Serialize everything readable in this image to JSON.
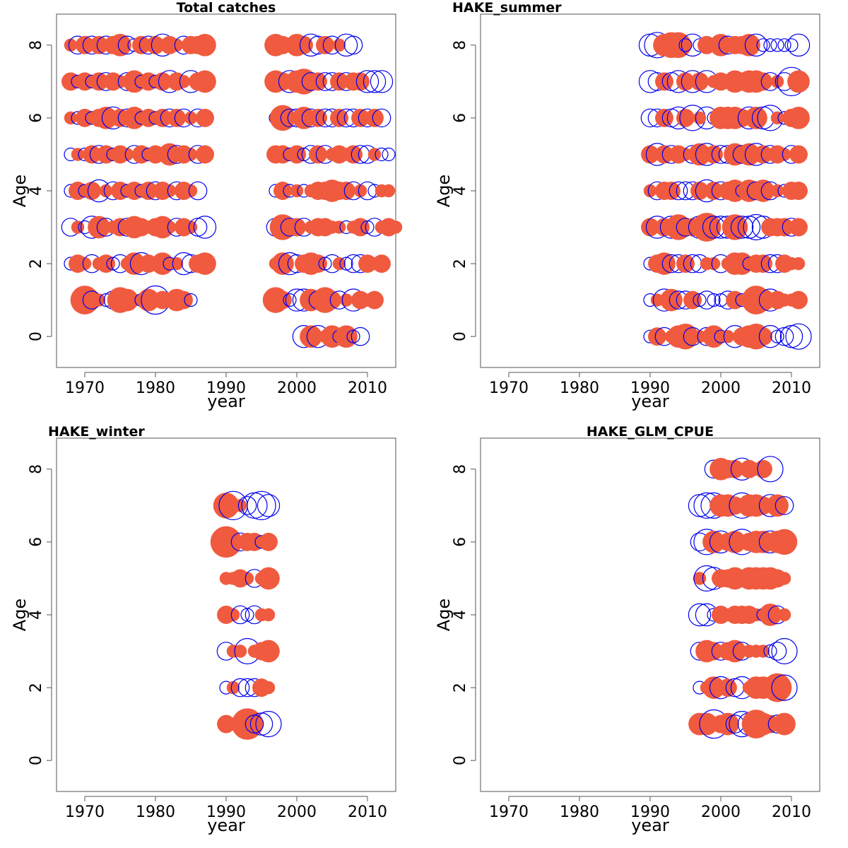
{
  "colors": {
    "positive": "#f05a3f",
    "negative": "#0000ee",
    "axis": "#555555"
  },
  "chart_data": [
    {
      "type": "scatter",
      "title": "Total catches",
      "xlabel": "year",
      "ylabel": "Age",
      "xticks": [
        1970,
        1980,
        1990,
        2000,
        2010
      ],
      "yticks": [
        0,
        2,
        4,
        6,
        8
      ],
      "xlim": [
        1966,
        2014
      ],
      "ylim": [
        -0.85,
        8.85
      ],
      "rows": [
        {
          "age": 1,
          "x0": 1969,
          "s": [
            -1,
            5,
            -2,
            1,
            -1,
            -2,
            4,
            3,
            1,
            -1,
            3,
            -5,
            2,
            1,
            3,
            2,
            -1
          ]
        },
        {
          "age": 2,
          "x0": 1968,
          "s": [
            -1,
            2,
            1,
            -2,
            1,
            2,
            -1,
            -2,
            1,
            3,
            -3,
            2,
            1,
            3,
            -1,
            1,
            -3,
            -2,
            2,
            3
          ]
        },
        {
          "age": 3,
          "x0": 1968,
          "s": [
            -2,
            1,
            -1,
            -3,
            3,
            -2,
            1,
            2,
            -2,
            3,
            2,
            1,
            2,
            3,
            1,
            -2,
            2,
            1,
            -2,
            -3
          ]
        },
        {
          "age": 4,
          "x0": 1968,
          "s": [
            -1,
            2,
            -1,
            2,
            -3,
            1,
            -2,
            2,
            -1,
            2,
            -1,
            2,
            -2,
            2,
            1,
            -2,
            2,
            1,
            -2
          ]
        },
        {
          "age": 5,
          "x0": 1968,
          "s": [
            -1,
            1,
            -1,
            2,
            -2,
            2,
            -1,
            2,
            1,
            -2,
            2,
            -1,
            2,
            1,
            3,
            -2,
            2,
            1,
            -2,
            2
          ]
        },
        {
          "age": 6,
          "x0": 1968,
          "s": [
            1,
            -1,
            2,
            -1,
            2,
            3,
            -3,
            2,
            -2,
            3,
            -1,
            2,
            -1,
            2,
            -2,
            2,
            -2,
            1,
            -2,
            2
          ]
        },
        {
          "age": 7,
          "x0": 1968,
          "s": [
            2,
            -1,
            2,
            -1,
            2,
            -2,
            2,
            1,
            -2,
            3,
            -1,
            2,
            -1,
            2,
            -3,
            2,
            1,
            -3,
            2,
            3
          ]
        },
        {
          "age": 8,
          "x0": 1968,
          "s": [
            1,
            -2,
            2,
            -2,
            2,
            -2,
            2,
            3,
            -2,
            -1,
            2,
            -2,
            2,
            -3,
            2,
            1,
            -2,
            2,
            2,
            3
          ]
        },
        {
          "age": 0,
          "x0": 2001,
          "s": [
            -3,
            3,
            -3,
            1,
            3,
            -1,
            3,
            -1,
            -2
          ]
        },
        {
          "age": 1,
          "x0": 1997,
          "s": [
            4,
            2,
            -1,
            -3,
            -3,
            3,
            -2,
            4,
            2,
            -2,
            1,
            -3,
            2,
            1,
            2
          ]
        },
        {
          "age": 2,
          "x0": 1997,
          "s": [
            1,
            3,
            -3,
            -2,
            2,
            3,
            2,
            -1,
            -2,
            1,
            -1,
            -2,
            -2,
            2,
            1,
            2
          ]
        },
        {
          "age": 3,
          "x0": 1997,
          "s": [
            -2,
            4,
            -2,
            2,
            -2,
            1,
            2,
            2,
            1,
            1,
            -1,
            1,
            2,
            -1,
            -2,
            1,
            2,
            1
          ]
        },
        {
          "age": 4,
          "x0": 1997,
          "s": [
            -1,
            2,
            -1,
            1,
            -1,
            1,
            2,
            2,
            3,
            2,
            2,
            -2,
            1,
            -2,
            -1,
            1,
            1
          ]
        },
        {
          "age": 5,
          "x0": 1997,
          "s": [
            2,
            2,
            -1,
            2,
            -1,
            -2,
            2,
            -2,
            1,
            2,
            1,
            2,
            -2,
            -2,
            1,
            -1,
            -1
          ]
        },
        {
          "age": 6,
          "x0": 1997,
          "s": [
            -1,
            4,
            -2,
            -2,
            3,
            -2,
            2,
            -2,
            -2,
            2,
            -2,
            -2,
            2,
            -2,
            2,
            -2
          ]
        },
        {
          "age": 7,
          "x0": 1997,
          "s": [
            3,
            2,
            -3,
            3,
            4,
            -2,
            2,
            -2,
            -2,
            2,
            -2,
            2,
            2,
            -3,
            -3,
            -3
          ]
        },
        {
          "age": 8,
          "x0": 1997,
          "s": [
            3,
            2,
            1,
            3,
            2,
            -3,
            -2,
            2,
            -2,
            1,
            -3,
            -2
          ]
        }
      ]
    },
    {
      "type": "scatter",
      "title": "HAKE_summer",
      "xlabel": "year",
      "ylabel": "Age",
      "xticks": [
        1970,
        1980,
        1990,
        2000,
        2010
      ],
      "yticks": [
        0,
        2,
        4,
        6,
        8
      ],
      "xlim": [
        1966,
        2014
      ],
      "ylim": [
        -0.85,
        8.85
      ],
      "rows": [
        {
          "age": 0,
          "x0": 1990,
          "s": [
            -1,
            2,
            -2,
            1,
            3,
            4,
            -2,
            1,
            -2,
            3,
            -1,
            1,
            -3,
            2,
            3,
            4,
            2,
            -3,
            -1,
            -2,
            -3,
            -4
          ]
        },
        {
          "age": 1,
          "x0": 1990,
          "s": [
            -1,
            1,
            -3,
            3,
            -2,
            -2,
            2,
            -1,
            -2,
            -1,
            -1,
            -2,
            2,
            -1,
            1,
            5,
            3,
            -3,
            2,
            1,
            1,
            2
          ]
        },
        {
          "age": 2,
          "x0": 1990,
          "s": [
            -1,
            2,
            3,
            -2,
            -2,
            2,
            -2,
            -2,
            1,
            1,
            -2,
            1,
            3,
            3,
            -1,
            2,
            2,
            -2,
            -2,
            2,
            1,
            1
          ]
        },
        {
          "age": 3,
          "x0": 1990,
          "s": [
            2,
            -3,
            2,
            -3,
            4,
            -2,
            2,
            -3,
            5,
            -3,
            -3,
            -3,
            4,
            -3,
            -3,
            -4,
            -3,
            2,
            2,
            2,
            -2,
            2
          ]
        },
        {
          "age": 4,
          "x0": 1990,
          "s": [
            1,
            -2,
            2,
            2,
            -2,
            -2,
            -2,
            2,
            -3,
            2,
            -2,
            2,
            3,
            -1,
            3,
            -2,
            3,
            -2,
            1,
            -1,
            2,
            2
          ]
        },
        {
          "age": 5,
          "x0": 1990,
          "s": [
            2,
            -3,
            2,
            -2,
            2,
            1,
            -2,
            3,
            -3,
            2,
            -2,
            -2,
            3,
            -2,
            3,
            -3,
            2,
            -2,
            2,
            1,
            -2,
            2
          ]
        },
        {
          "age": 6,
          "x0": 1990,
          "s": [
            -2,
            -2,
            2,
            -2,
            -3,
            2,
            -4,
            1,
            -3,
            -1,
            3,
            3,
            3,
            2,
            -3,
            3,
            -3,
            -4,
            1,
            -1,
            2,
            3
          ]
        },
        {
          "age": 7,
          "x0": 1990,
          "s": [
            -3,
            -2,
            2,
            -2,
            -3,
            2,
            -3,
            2,
            -3,
            1,
            2,
            1,
            3,
            2,
            3,
            3,
            2,
            -2,
            1,
            -2,
            -5,
            3
          ]
        },
        {
          "age": 8,
          "x0": 1990,
          "s": [
            -3,
            -4,
            3,
            4,
            4,
            -1,
            -3,
            -1,
            2,
            1,
            3,
            -2,
            2,
            2,
            3,
            -3,
            -1,
            -1,
            -1,
            -1,
            -1,
            -3
          ]
        }
      ]
    },
    {
      "type": "scatter",
      "title": "HAKE_winter",
      "xlabel": "year",
      "ylabel": "Age",
      "xticks": [
        1970,
        1980,
        1990,
        2000,
        2010
      ],
      "yticks": [
        0,
        2,
        4,
        6,
        8
      ],
      "xlim": [
        1966,
        2014
      ],
      "ylim": [
        -0.85,
        8.85
      ],
      "rows": [
        {
          "age": 1,
          "x0": 1990,
          "s": [
            2,
            1,
            -1,
            6,
            -2,
            -3,
            -4
          ]
        },
        {
          "age": 2,
          "x0": 1990,
          "s": [
            -1,
            1,
            -2,
            -2,
            -2,
            2,
            1
          ]
        },
        {
          "age": 3,
          "x0": 1990,
          "s": [
            -2,
            1,
            1,
            -4,
            1,
            2,
            3
          ]
        },
        {
          "age": 4,
          "x0": 1990,
          "s": [
            2,
            1,
            -2,
            -1,
            -2,
            1,
            1
          ]
        },
        {
          "age": 5,
          "x0": 1990,
          "s": [
            1,
            1,
            2,
            1,
            -2,
            1,
            3
          ]
        },
        {
          "age": 6,
          "x0": 1990,
          "s": [
            6,
            1,
            -2,
            2,
            2,
            -1,
            2
          ]
        },
        {
          "age": 7,
          "x0": 1990,
          "s": [
            4,
            -5,
            1,
            -2,
            -4,
            -5,
            -3
          ]
        }
      ]
    },
    {
      "type": "scatter",
      "title": "HAKE_GLM_CPUE",
      "xlabel": "year",
      "ylabel": "Age",
      "xticks": [
        1970,
        1980,
        1990,
        2000,
        2010
      ],
      "yticks": [
        0,
        2,
        4,
        6,
        8
      ],
      "xlim": [
        1966,
        2014
      ],
      "ylim": [
        -0.85,
        8.85
      ],
      "rows": [
        {
          "age": 1,
          "x0": 1997,
          "s": [
            3,
            3,
            -5,
            2,
            3,
            -2,
            -4,
            -3,
            5,
            3,
            2,
            -2,
            3
          ]
        },
        {
          "age": 2,
          "x0": 1997,
          "s": [
            -1,
            1,
            3,
            -3,
            2,
            -2,
            -3,
            1,
            3,
            3,
            1,
            5,
            -4
          ]
        },
        {
          "age": 3,
          "x0": 1997,
          "s": [
            -2,
            3,
            2,
            -2,
            2,
            3,
            -2,
            1,
            1,
            1,
            -1,
            -2,
            -4
          ]
        },
        {
          "age": 4,
          "x0": 1997,
          "s": [
            -3,
            -3,
            -1,
            2,
            1,
            2,
            2,
            2,
            1,
            -1,
            3,
            -2,
            1
          ]
        },
        {
          "age": 5,
          "x0": 1997,
          "s": [
            1,
            -4,
            -3,
            2,
            2,
            3,
            1,
            3,
            3,
            3,
            3,
            2,
            1
          ]
        },
        {
          "age": 6,
          "x0": 1997,
          "s": [
            -2,
            -4,
            3,
            -3,
            2,
            3,
            -4,
            2,
            3,
            3,
            -3,
            3,
            4
          ]
        },
        {
          "age": 7,
          "x0": 1997,
          "s": [
            -3,
            -4,
            -4,
            3,
            3,
            2,
            -4,
            3,
            3,
            2,
            -3,
            3,
            -2
          ]
        },
        {
          "age": 8,
          "x0": 1999,
          "s": [
            -2,
            3,
            2,
            2,
            -3,
            2,
            1,
            2,
            -4
          ]
        }
      ]
    }
  ]
}
